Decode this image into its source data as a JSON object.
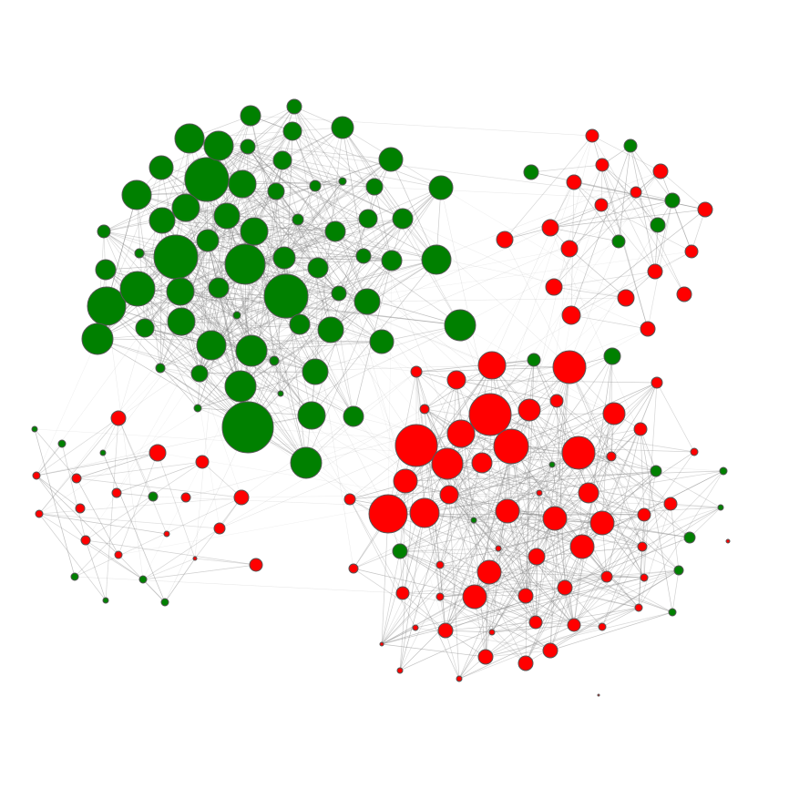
{
  "diagram": {
    "type": "network-graph",
    "legend": "none",
    "colors": {
      "green": "#008000",
      "red": "#ff0000",
      "node_outline": "#555555",
      "edge": "#8c8c8c",
      "background": "#ffffff"
    },
    "communities": [
      {
        "name": "green-cluster-large",
        "color": "green",
        "hub_count": 35,
        "minor_count": 50
      },
      {
        "name": "red-cluster-large",
        "color": "red",
        "hub_count": 12,
        "minor_count": 50
      },
      {
        "name": "red-cluster-upper-right",
        "color": "red",
        "hub_count": 0,
        "minor_count": 28
      },
      {
        "name": "mixed-cluster-lower-left",
        "color": "red",
        "hub_count": 0,
        "minor_count": 30
      }
    ]
  }
}
